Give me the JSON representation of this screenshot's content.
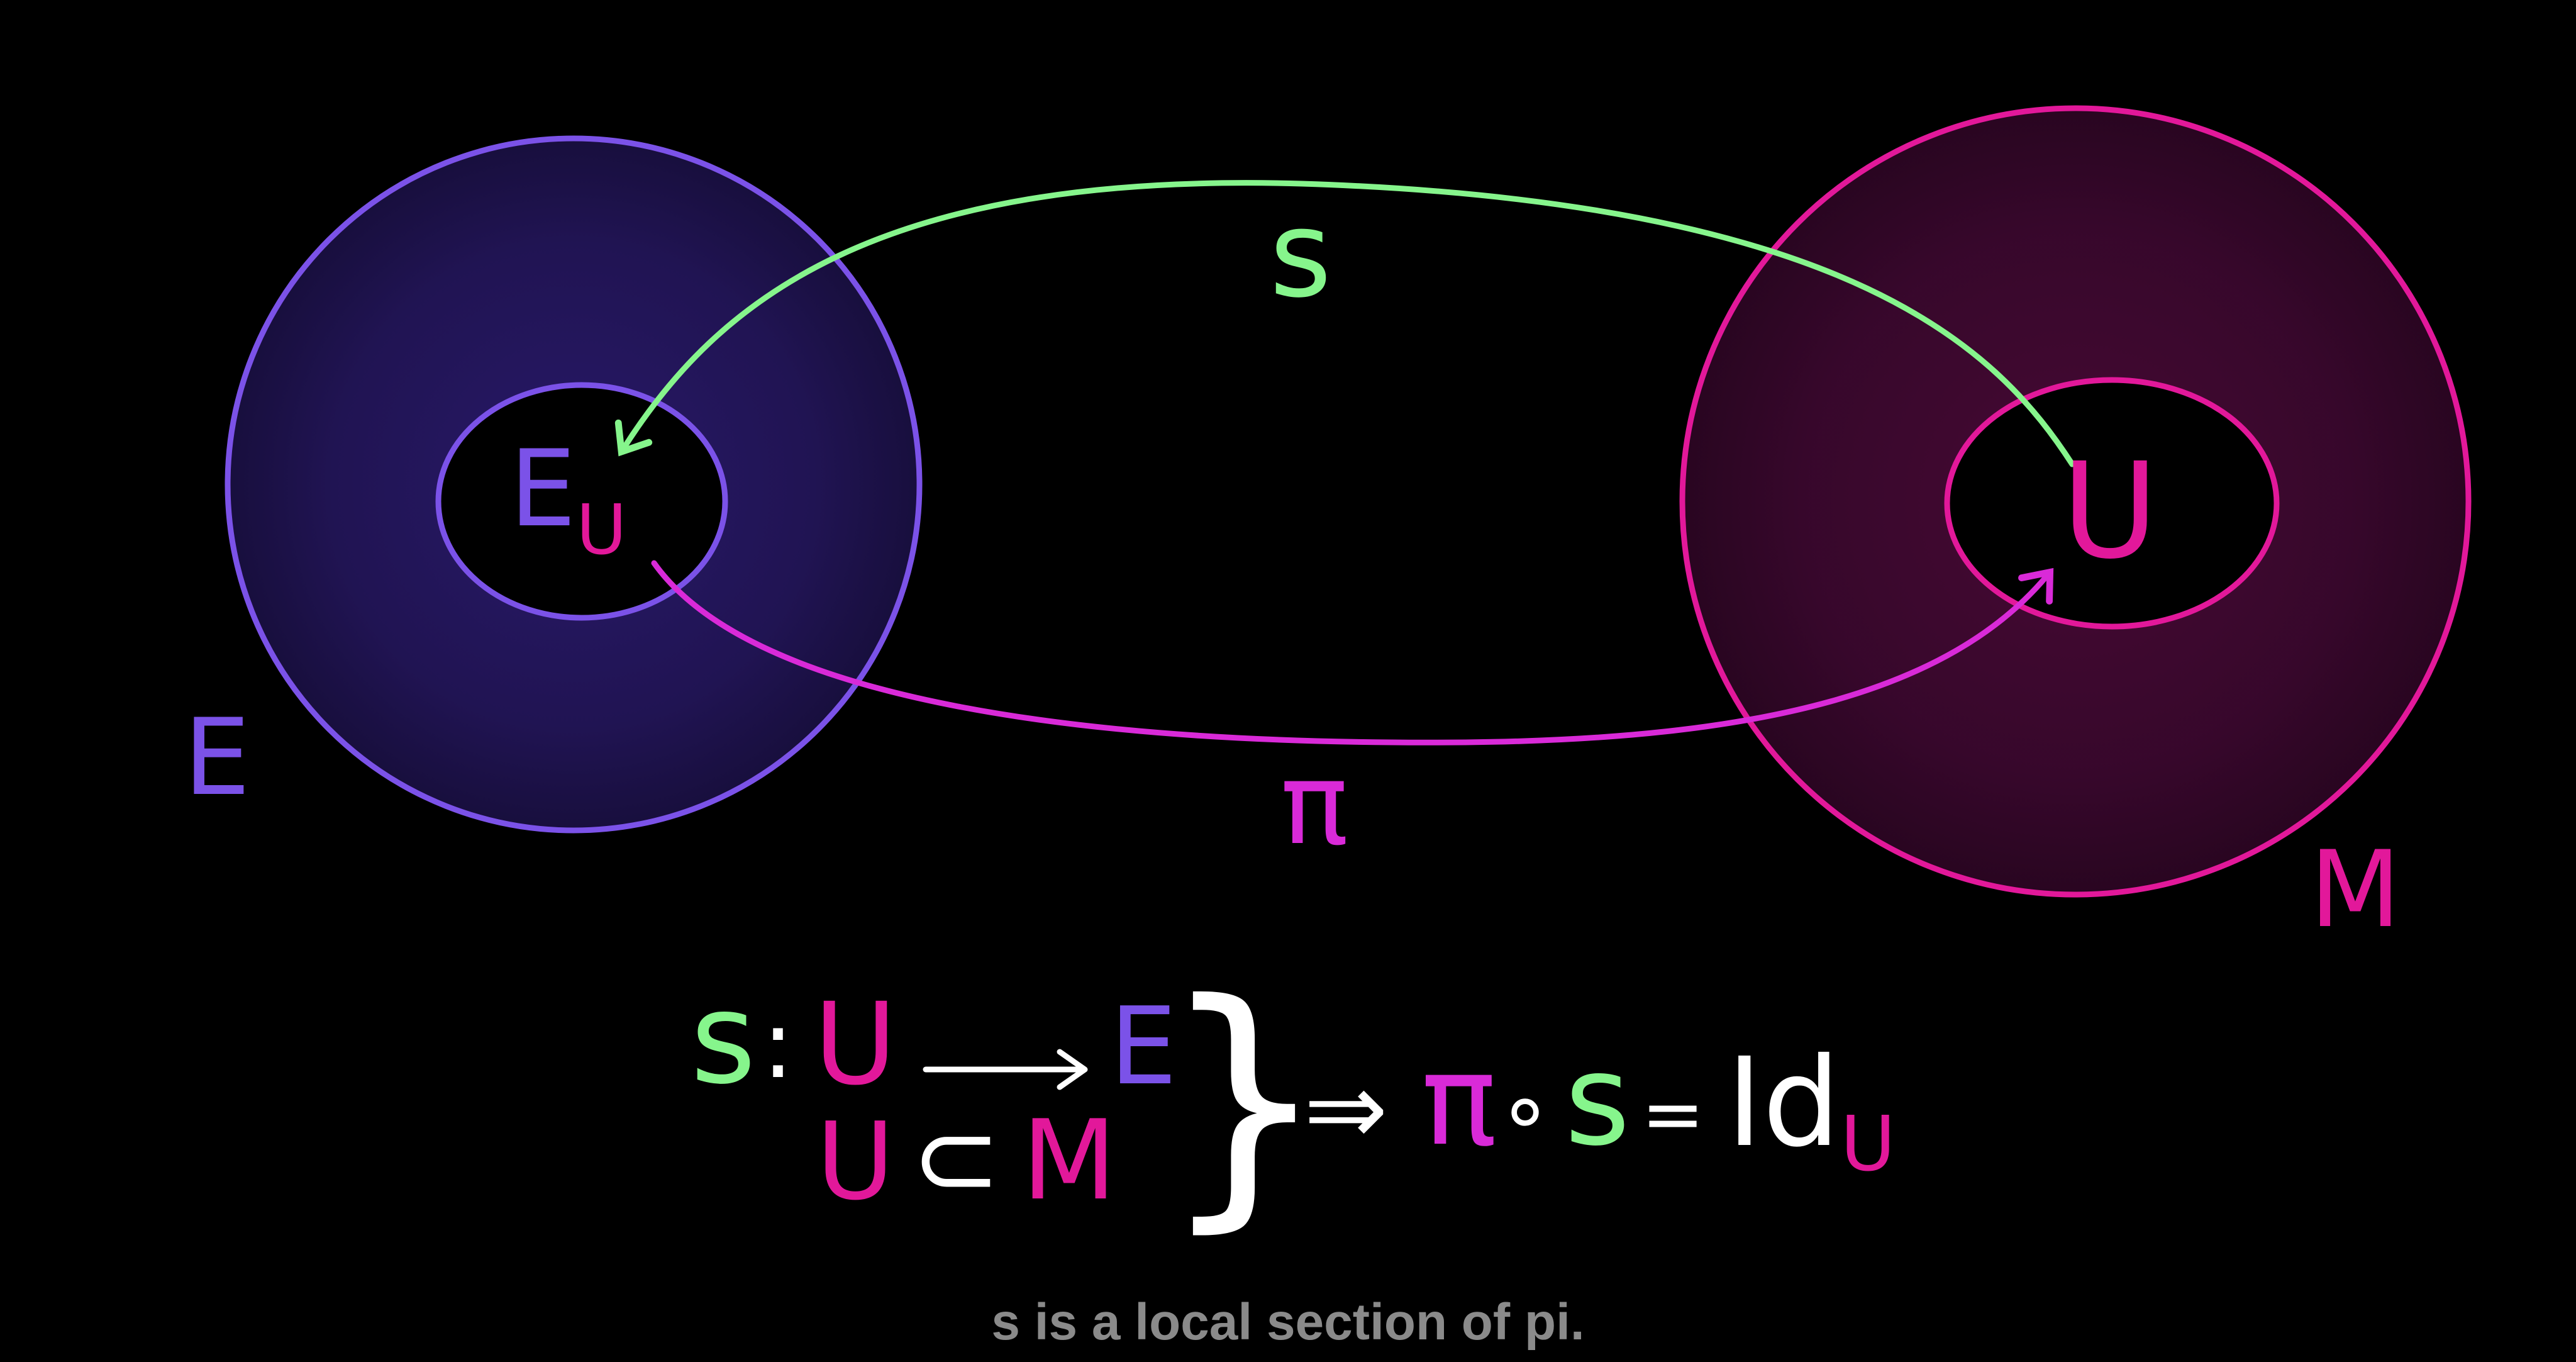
{
  "colors": {
    "background": "#000000",
    "bundle": "#7b52e8",
    "base": "#e2189a",
    "section_arrow": "#86f58c",
    "projection_arrow": "#d92ad8",
    "text_white": "#ffffff",
    "caption": "#8a8a8a"
  },
  "diagram": {
    "total_space_label": "E",
    "fiber_label_main": "E",
    "fiber_label_sub": "U",
    "base_space_label": "M",
    "open_set_label": "U",
    "section_label": "s",
    "projection_label": "π"
  },
  "formula": {
    "line1": {
      "s": "s",
      "colon": ":",
      "domain": "U",
      "codomain": "E"
    },
    "line2": {
      "u": "U",
      "subset": "⊂",
      "m": "M"
    },
    "brace": "}",
    "implies": "⇒",
    "rhs": {
      "pi": "π",
      "circ": "∘",
      "s": "s",
      "eq": "=",
      "id": "Id",
      "sub": "U"
    }
  },
  "caption": "s is a local section of pi."
}
